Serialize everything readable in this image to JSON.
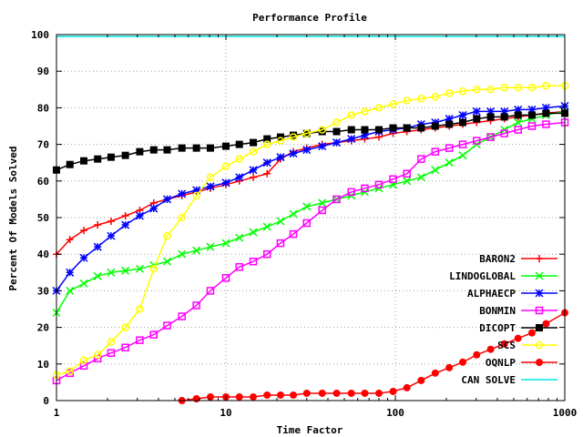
{
  "chart_data": {
    "type": "line",
    "title": "Performance Profile",
    "xlabel": "Time Factor",
    "ylabel": "Percent Of Models Solved",
    "xscale": "log",
    "xlim": [
      1,
      1000
    ],
    "ylim": [
      0,
      100
    ],
    "xticks": [
      1,
      10,
      100,
      1000
    ],
    "xtick_labels": [
      "1",
      "10",
      "100",
      "1000"
    ],
    "yticks": [
      0,
      10,
      20,
      30,
      40,
      50,
      60,
      70,
      80,
      90,
      100
    ],
    "ytick_labels": [
      "0",
      "10",
      "20",
      "30",
      "40",
      "50",
      "60",
      "70",
      "80",
      "90",
      "100"
    ],
    "grid": true,
    "legend_position": "bottom-right",
    "series": [
      {
        "name": "BARON2",
        "color": "#ff0000",
        "marker": "plus",
        "x": [
          1,
          1.2,
          1.45,
          1.75,
          2.1,
          2.55,
          3.1,
          3.75,
          4.5,
          5.5,
          6.7,
          8.1,
          10,
          12,
          14.5,
          17.5,
          21,
          25,
          30,
          37,
          45,
          55,
          66,
          80,
          97,
          117,
          142,
          172,
          208,
          250,
          302,
          365,
          440,
          530,
          640,
          775,
          1000
        ],
        "y": [
          40,
          44,
          46.5,
          48,
          49,
          50.5,
          52,
          54,
          55,
          56,
          57,
          58,
          59,
          60,
          61,
          62,
          66,
          68,
          69,
          70,
          70.5,
          71,
          71.5,
          72,
          73,
          73.5,
          74,
          74.5,
          75,
          75.5,
          76,
          76.5,
          77,
          77.5,
          78,
          78.5,
          79
        ]
      },
      {
        "name": "LINDOGLOBAL",
        "color": "#00ff00",
        "marker": "x",
        "x": [
          1,
          1.2,
          1.45,
          1.75,
          2.1,
          2.55,
          3.1,
          3.75,
          4.5,
          5.5,
          6.7,
          8.1,
          10,
          12,
          14.5,
          17.5,
          21,
          25,
          30,
          37,
          45,
          55,
          66,
          80,
          97,
          117,
          142,
          172,
          208,
          250,
          302,
          365,
          440,
          530,
          640,
          775,
          1000
        ],
        "y": [
          24,
          30,
          32,
          34,
          35,
          35.5,
          36,
          37,
          38,
          40,
          41,
          42,
          43,
          44.5,
          46,
          47.5,
          49,
          51,
          53,
          54,
          55,
          56,
          57,
          58,
          59,
          60,
          61,
          63,
          65,
          67,
          70,
          72,
          74,
          76,
          77,
          78,
          79
        ]
      },
      {
        "name": "ALPHAECP",
        "color": "#0000ff",
        "marker": "star",
        "x": [
          1,
          1.2,
          1.45,
          1.75,
          2.1,
          2.55,
          3.1,
          3.75,
          4.5,
          5.5,
          6.7,
          8.1,
          10,
          12,
          14.5,
          17.5,
          21,
          25,
          30,
          37,
          45,
          55,
          66,
          80,
          97,
          117,
          142,
          172,
          208,
          250,
          302,
          365,
          440,
          530,
          640,
          775,
          1000
        ],
        "y": [
          30,
          35,
          39,
          42,
          45,
          48,
          50.5,
          52.5,
          55,
          56.5,
          57.5,
          58.5,
          59.5,
          61,
          63,
          65,
          66.5,
          67.5,
          68.5,
          69.5,
          70.5,
          71.5,
          72.5,
          73.5,
          74,
          74.5,
          75.5,
          76,
          77,
          78,
          79,
          79,
          79,
          79.5,
          79.5,
          80,
          80.5
        ]
      },
      {
        "name": "BONMIN",
        "color": "#ff00ff",
        "marker": "square",
        "x": [
          1,
          1.2,
          1.45,
          1.75,
          2.1,
          2.55,
          3.1,
          3.75,
          4.5,
          5.5,
          6.7,
          8.1,
          10,
          12,
          14.5,
          17.5,
          21,
          25,
          30,
          37,
          45,
          55,
          66,
          80,
          97,
          117,
          142,
          172,
          208,
          250,
          302,
          365,
          440,
          530,
          640,
          775,
          1000
        ],
        "y": [
          5.5,
          7.5,
          9.5,
          11.5,
          13,
          14.5,
          16.5,
          18,
          20.5,
          23,
          26,
          30,
          33.5,
          36.5,
          38,
          40,
          43,
          45.5,
          48.5,
          52,
          55,
          57,
          58,
          59,
          60.5,
          62,
          66,
          68,
          69,
          70,
          71,
          72,
          73,
          74,
          75,
          75.5,
          76
        ]
      },
      {
        "name": "DICOPT",
        "color": "#000000",
        "marker": "filled-square",
        "x": [
          1,
          1.2,
          1.45,
          1.75,
          2.1,
          2.55,
          3.1,
          3.75,
          4.5,
          5.5,
          6.7,
          8.1,
          10,
          12,
          14.5,
          17.5,
          21,
          25,
          30,
          37,
          45,
          55,
          66,
          80,
          97,
          117,
          142,
          172,
          208,
          250,
          302,
          365,
          440,
          530,
          640,
          775,
          1000
        ],
        "y": [
          63,
          64.5,
          65.5,
          66,
          66.5,
          67,
          68,
          68.5,
          68.5,
          69,
          69,
          69,
          69.5,
          70,
          70.5,
          71.5,
          72,
          72.5,
          73,
          73.5,
          73.5,
          74,
          74,
          74,
          74.5,
          74.5,
          74.5,
          75,
          75.5,
          76,
          77,
          77.5,
          77.5,
          78,
          78,
          78.5,
          78.5
        ]
      },
      {
        "name": "SCS",
        "color": "#ffff00",
        "marker": "circle",
        "x": [
          1,
          1.2,
          1.45,
          1.75,
          2.1,
          2.55,
          3.1,
          3.75,
          4.5,
          5.5,
          6.7,
          8.1,
          10,
          12,
          14.5,
          17.5,
          21,
          25,
          30,
          37,
          45,
          55,
          66,
          80,
          97,
          117,
          142,
          172,
          208,
          250,
          302,
          365,
          440,
          530,
          640,
          775,
          1000
        ],
        "y": [
          7,
          8,
          11,
          12.5,
          16,
          20,
          25,
          36,
          45,
          50,
          56,
          61,
          64,
          66,
          68,
          70,
          71,
          72,
          73,
          74,
          76,
          78,
          79,
          80,
          81,
          82,
          82.5,
          83,
          84,
          84.5,
          85,
          85,
          85.5,
          85.5,
          85.5,
          86,
          86
        ]
      },
      {
        "name": "OQNLP",
        "color": "#ff0000",
        "marker": "filled-circle",
        "x": [
          5.5,
          6.7,
          8.1,
          10,
          12,
          14.5,
          17.5,
          21,
          25,
          30,
          37,
          45,
          55,
          66,
          80,
          97,
          117,
          142,
          172,
          208,
          250,
          302,
          365,
          440,
          530,
          640,
          775,
          1000
        ],
        "y": [
          0,
          0.5,
          1,
          1,
          1,
          1,
          1.5,
          1.5,
          1.5,
          2,
          2,
          2,
          2,
          2,
          2,
          2.5,
          3.5,
          5.5,
          7.5,
          9,
          10.5,
          12.5,
          14,
          15.5,
          17,
          18.5,
          21,
          24
        ]
      },
      {
        "name": "CAN SOLVE",
        "color": "#00e5e5",
        "marker": "none",
        "x": [
          1,
          1000
        ],
        "y": [
          99.5,
          99.5
        ]
      }
    ]
  }
}
